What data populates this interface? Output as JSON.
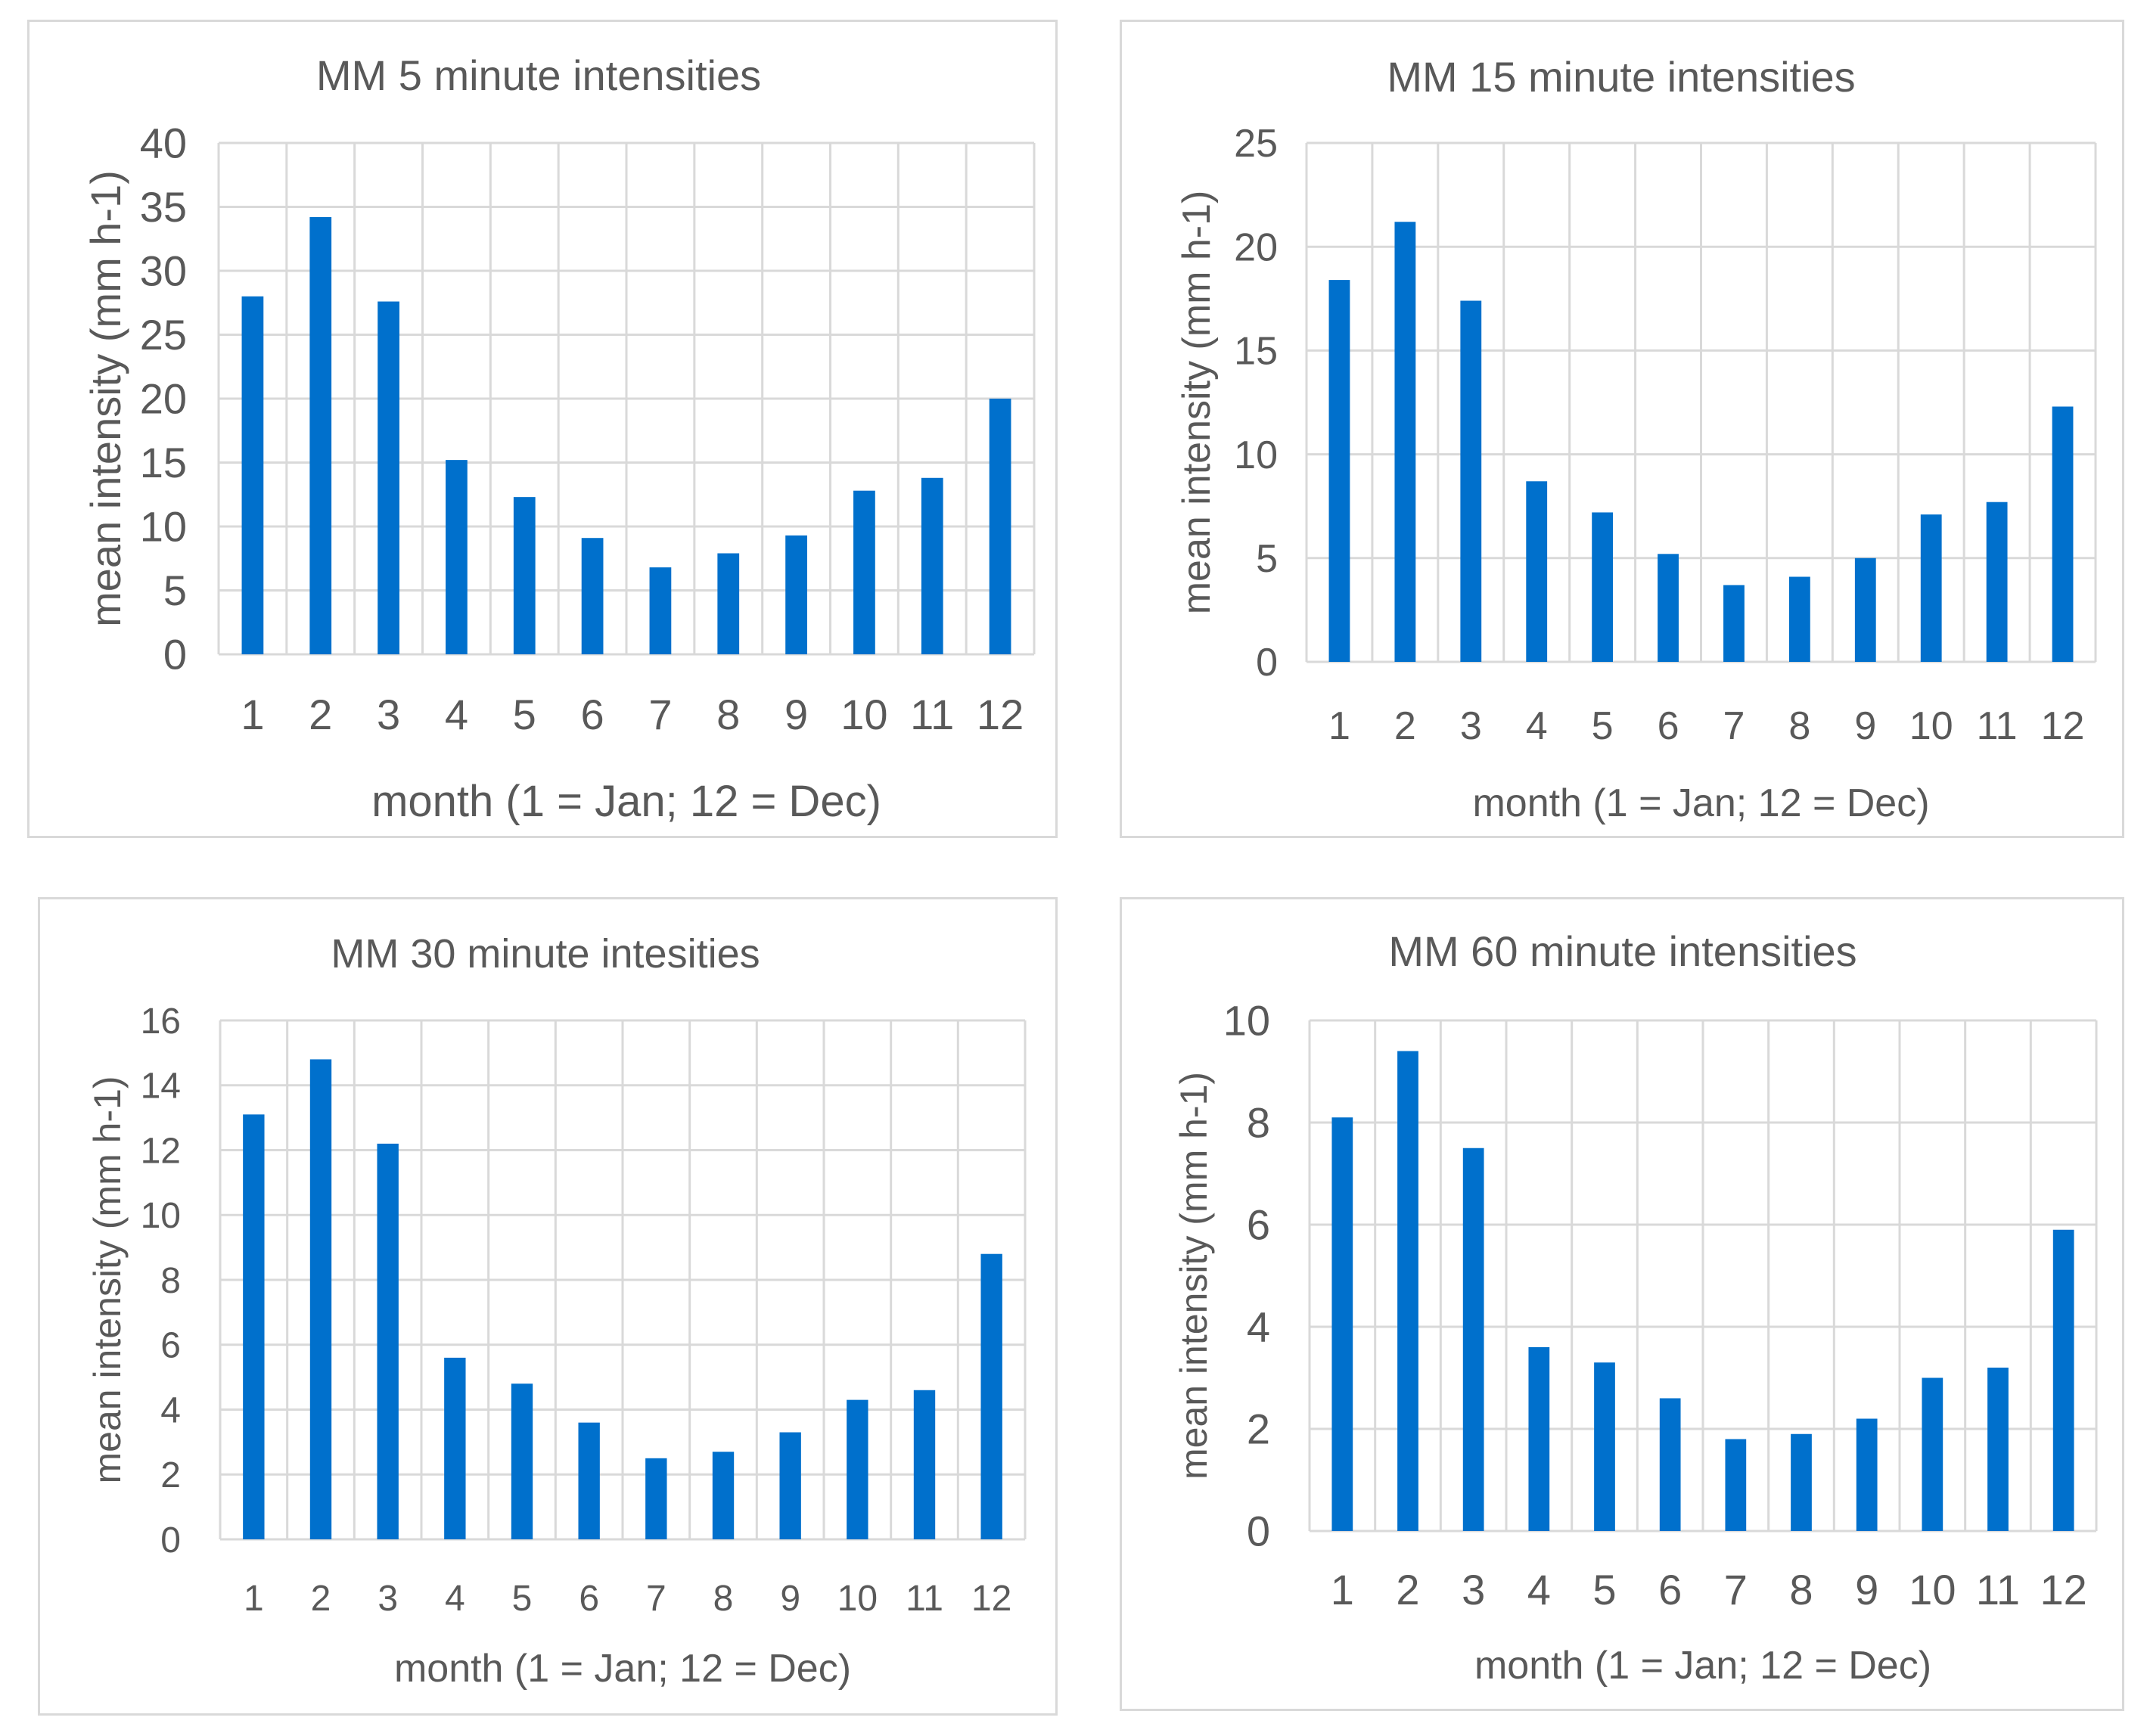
{
  "colors": {
    "bar": "#0070cc",
    "grid": "#d9d9d9",
    "text": "#595959",
    "border": "#d9d9d9"
  },
  "chart_data": [
    {
      "type": "bar",
      "title": "MM 5 minute intensities",
      "xlabel": "month (1 = Jan; 12 = Dec)",
      "ylabel": "mean intensity (mm h-1)",
      "categories": [
        "1",
        "2",
        "3",
        "4",
        "5",
        "6",
        "7",
        "8",
        "9",
        "10",
        "11",
        "12"
      ],
      "values": [
        28,
        34.2,
        27.6,
        15.2,
        12.3,
        9.1,
        6.8,
        7.9,
        9.3,
        12.8,
        13.8,
        20
      ],
      "ylim": [
        0,
        40
      ],
      "yticks": [
        "0",
        "5",
        "10",
        "15",
        "20",
        "25",
        "30",
        "35",
        "40"
      ],
      "grid": true
    },
    {
      "type": "bar",
      "title": "MM 15 minute intensities",
      "xlabel": "month (1 = Jan; 12 = Dec)",
      "ylabel": "mean intensity (mm h-1)",
      "categories": [
        "1",
        "2",
        "3",
        "4",
        "5",
        "6",
        "7",
        "8",
        "9",
        "10",
        "11",
        "12"
      ],
      "values": [
        18.4,
        21.2,
        17.4,
        8.7,
        7.2,
        5.2,
        3.7,
        4.1,
        5,
        7.1,
        7.7,
        12.3
      ],
      "ylim": [
        0,
        25
      ],
      "yticks": [
        "0",
        "5",
        "10",
        "15",
        "20",
        "25"
      ],
      "grid": true
    },
    {
      "type": "bar",
      "title": "MM 30 minute intesities",
      "xlabel": "month (1 = Jan; 12 = Dec)",
      "ylabel": "mean intensity (mm h-1)",
      "categories": [
        "1",
        "2",
        "3",
        "4",
        "5",
        "6",
        "7",
        "8",
        "9",
        "10",
        "11",
        "12"
      ],
      "values": [
        13.1,
        14.8,
        12.2,
        5.6,
        4.8,
        3.6,
        2.5,
        2.7,
        3.3,
        4.3,
        4.6,
        8.8
      ],
      "ylim": [
        0,
        16
      ],
      "yticks": [
        "0",
        "2",
        "4",
        "6",
        "8",
        "10",
        "12",
        "14",
        "16"
      ],
      "grid": true
    },
    {
      "type": "bar",
      "title": "MM 60 minute intensities",
      "xlabel": "month (1 = Jan; 12 = Dec)",
      "ylabel": "mean intensity (mm h-1)",
      "categories": [
        "1",
        "2",
        "3",
        "4",
        "5",
        "6",
        "7",
        "8",
        "9",
        "10",
        "11",
        "12"
      ],
      "values": [
        8.1,
        9.4,
        7.5,
        3.6,
        3.3,
        2.6,
        1.8,
        1.9,
        2.2,
        3,
        3.2,
        5.9
      ],
      "ylim": [
        0,
        10
      ],
      "yticks": [
        "0",
        "2",
        "4",
        "6",
        "8",
        "10"
      ],
      "grid": true
    }
  ]
}
